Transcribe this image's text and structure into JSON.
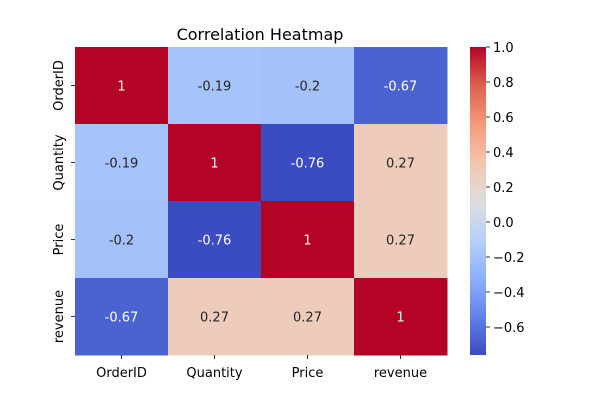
{
  "chart_data": {
    "type": "heatmap",
    "title": "Correlation Heatmap",
    "xlabel": "",
    "ylabel": "",
    "x_categories": [
      "OrderID",
      "Quantity",
      "Price",
      "revenue"
    ],
    "y_categories": [
      "OrderID",
      "Quantity",
      "Price",
      "revenue"
    ],
    "values": [
      [
        1,
        -0.19,
        -0.2,
        -0.67
      ],
      [
        -0.19,
        1,
        -0.76,
        0.27
      ],
      [
        -0.2,
        -0.76,
        1,
        0.27
      ],
      [
        -0.67,
        0.27,
        0.27,
        1
      ]
    ],
    "annotations": [
      [
        "1",
        "-0.19",
        "-0.2",
        "-0.67"
      ],
      [
        "-0.19",
        "1",
        "-0.76",
        "0.27"
      ],
      [
        "-0.2",
        "-0.76",
        "1",
        "0.27"
      ],
      [
        "-0.67",
        "0.27",
        "0.27",
        "1"
      ]
    ],
    "colormap": "coolwarm",
    "color_range": [
      -0.76,
      1.0
    ],
    "colorbar_ticks": [
      "1.0",
      "0.8",
      "0.6",
      "0.4",
      "0.2",
      "0.0",
      "−0.2",
      "−0.4",
      "−0.6"
    ],
    "colorbar_tick_values": [
      1.0,
      0.8,
      0.6,
      0.4,
      0.2,
      0.0,
      -0.2,
      -0.4,
      -0.6
    ],
    "colorbar_position": "right",
    "grid": false
  }
}
